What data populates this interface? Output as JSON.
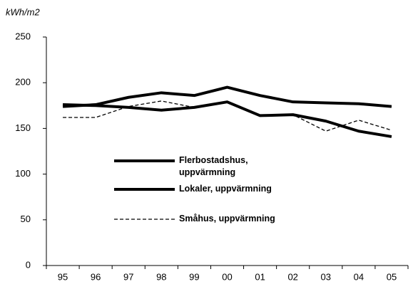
{
  "chart_data": {
    "type": "line",
    "y_label": "kWh/m2",
    "categories": [
      "95",
      "96",
      "97",
      "98",
      "99",
      "00",
      "01",
      "02",
      "03",
      "04",
      "05"
    ],
    "series": [
      {
        "name": "Flerbostadshus, uppvärmning",
        "color": "#000000",
        "style": "solid",
        "values": [
          174,
          176,
          184,
          189,
          186,
          195,
          186,
          179,
          178,
          177,
          174
        ]
      },
      {
        "name": "Lokaler, uppvärmning",
        "color": "#000000",
        "style": "solid",
        "values": [
          176,
          175,
          173,
          170,
          173,
          179,
          164,
          165,
          158,
          147,
          141
        ]
      },
      {
        "name": "Småhus, uppvärmning",
        "color": "#000000",
        "style": "dashed",
        "values": [
          162,
          162,
          174,
          180,
          173,
          179,
          164,
          165,
          147,
          159,
          148
        ]
      }
    ],
    "ylim": [
      0,
      250
    ],
    "yticks": [
      0,
      50,
      100,
      150,
      200,
      250
    ],
    "grid": false
  }
}
